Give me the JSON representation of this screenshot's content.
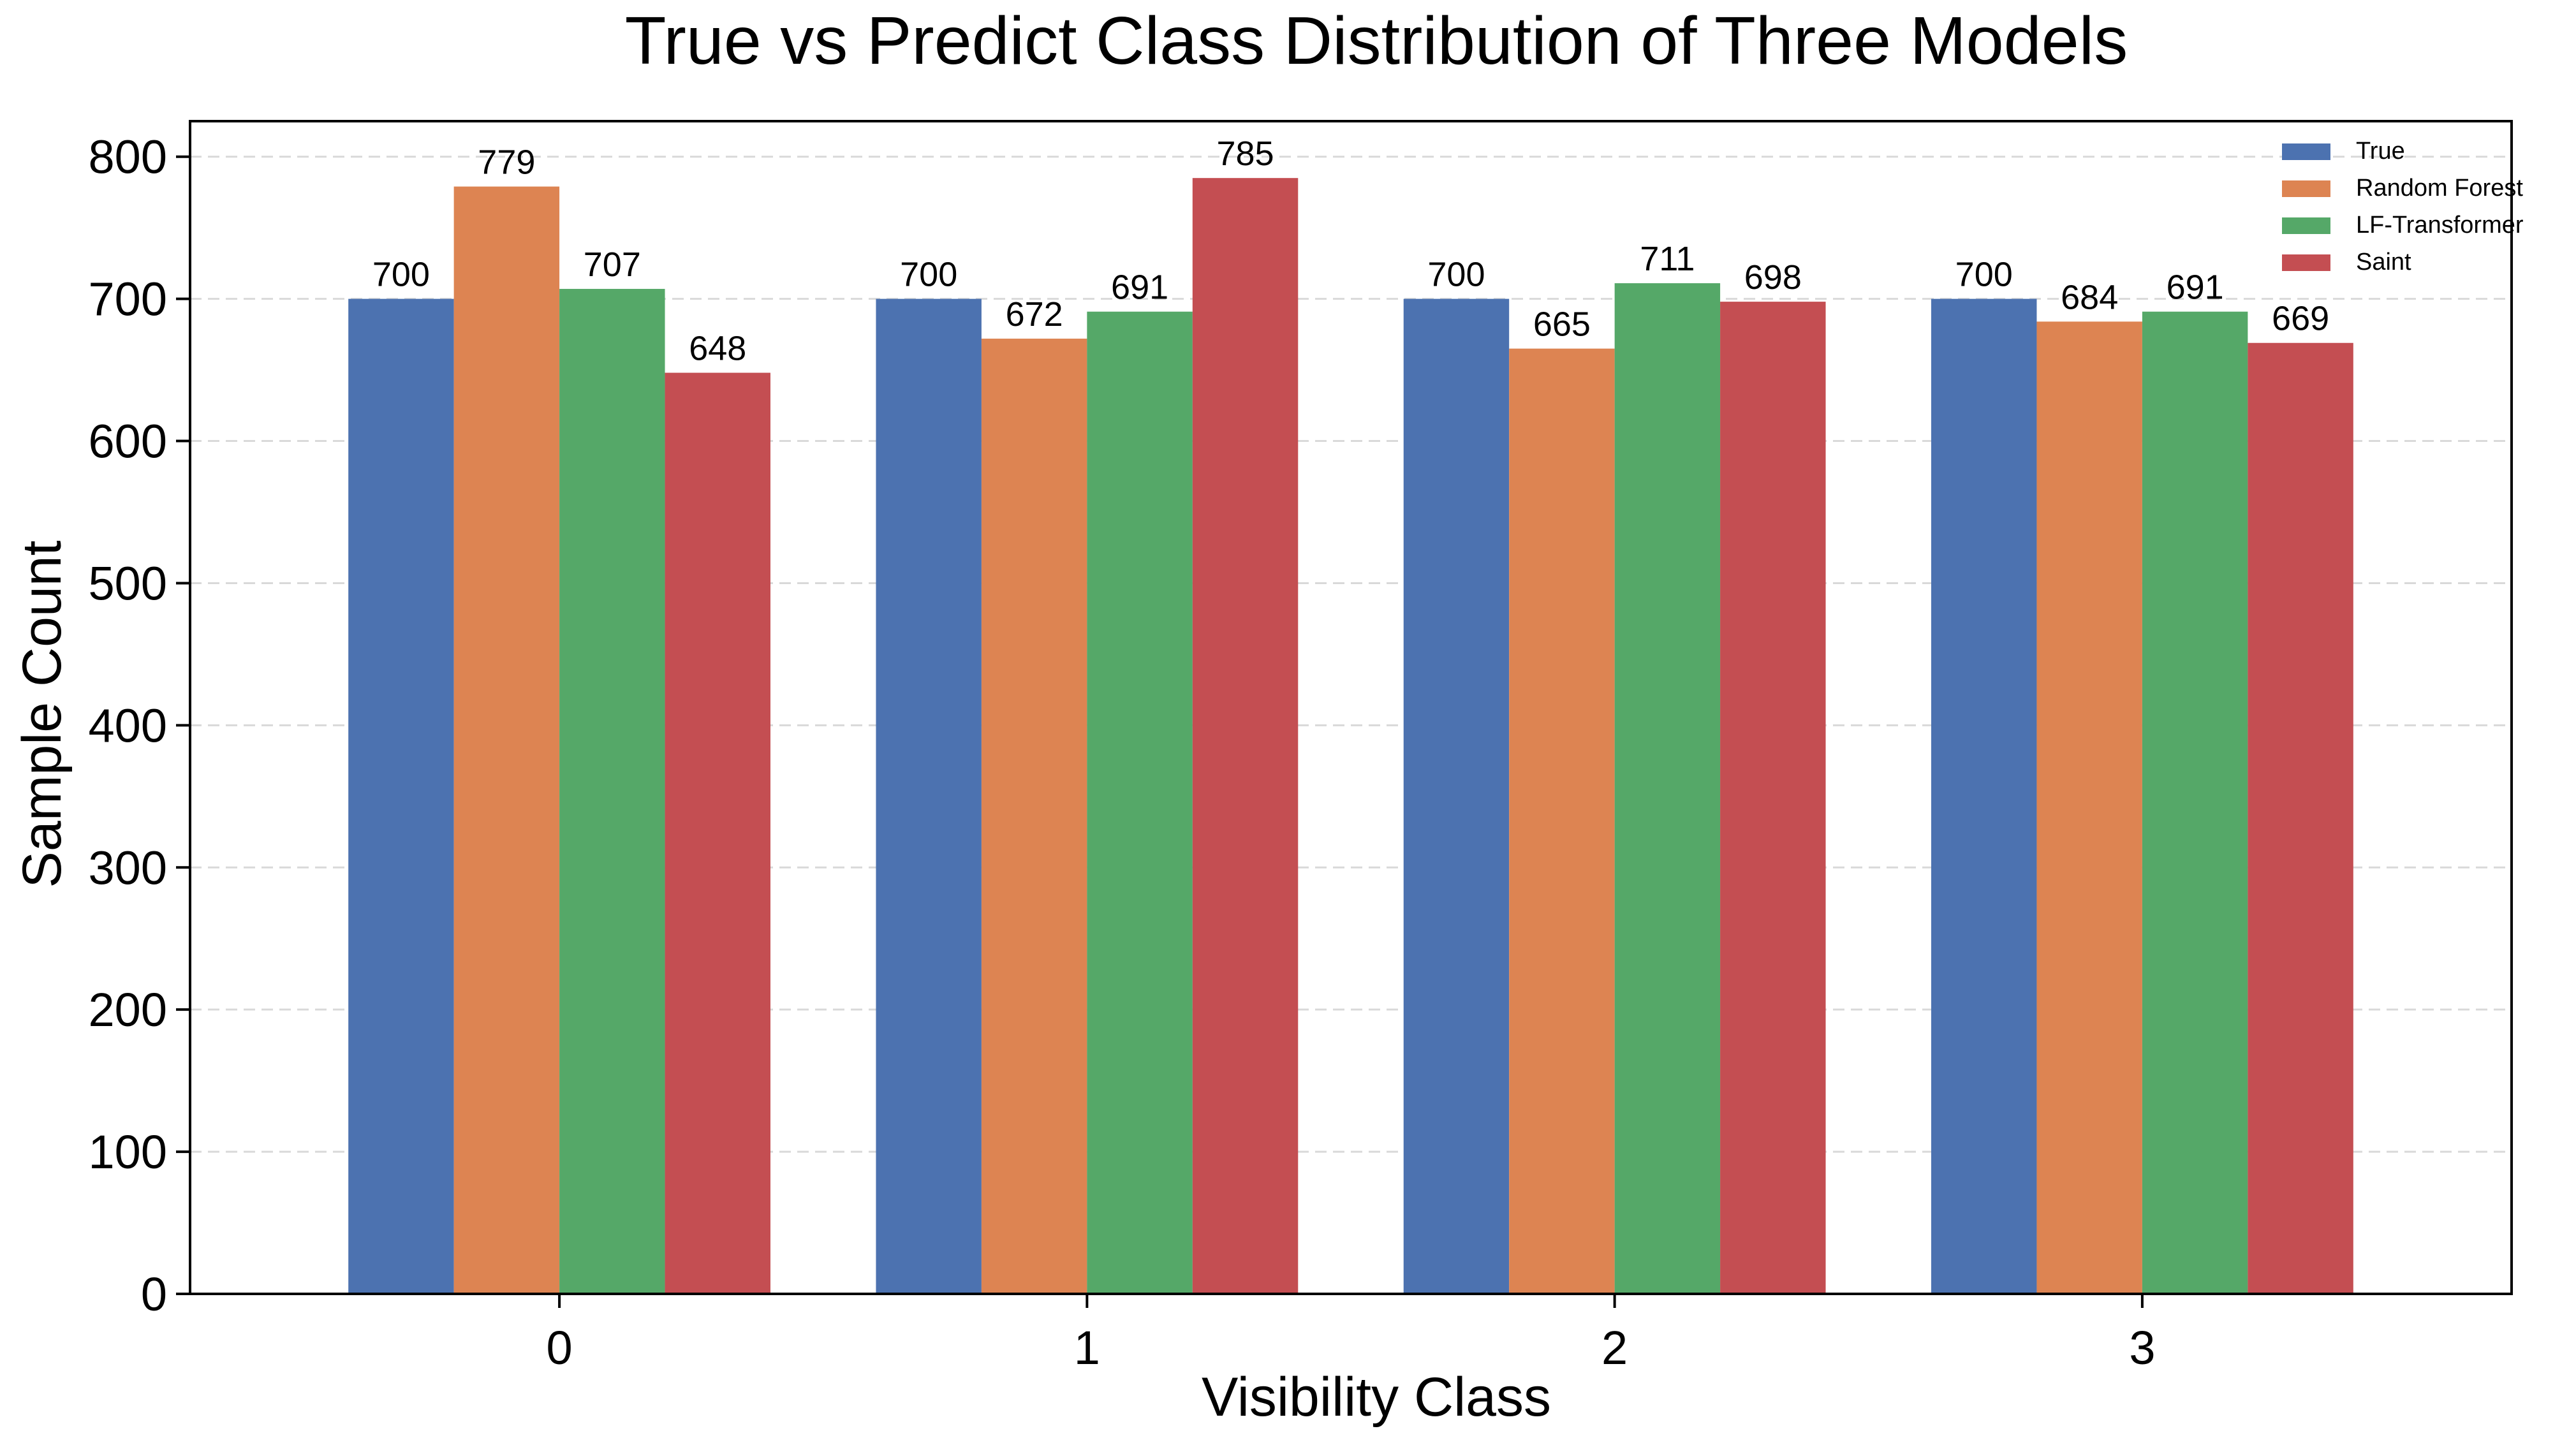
{
  "chart_data": {
    "type": "bar",
    "title": "True vs Predict Class Distribution of Three Models",
    "xlabel": "Visibility Class",
    "ylabel": "Sample Count",
    "categories": [
      "0",
      "1",
      "2",
      "3"
    ],
    "series": [
      {
        "name": "True",
        "color": "#4c72b0",
        "values": [
          700,
          700,
          700,
          700
        ]
      },
      {
        "name": "Random Forest",
        "color": "#dd8452",
        "values": [
          779,
          672,
          665,
          684
        ]
      },
      {
        "name": "LF-Transformer",
        "color": "#55a868",
        "values": [
          707,
          691,
          711,
          691
        ]
      },
      {
        "name": "Saint",
        "color": "#c44e52",
        "values": [
          648,
          785,
          698,
          669
        ]
      }
    ],
    "ylim": [
      0,
      825
    ],
    "yticks": [
      0,
      100,
      200,
      300,
      400,
      500,
      600,
      700,
      800
    ],
    "grid": "horizontal dashed",
    "legend": "top-right"
  }
}
